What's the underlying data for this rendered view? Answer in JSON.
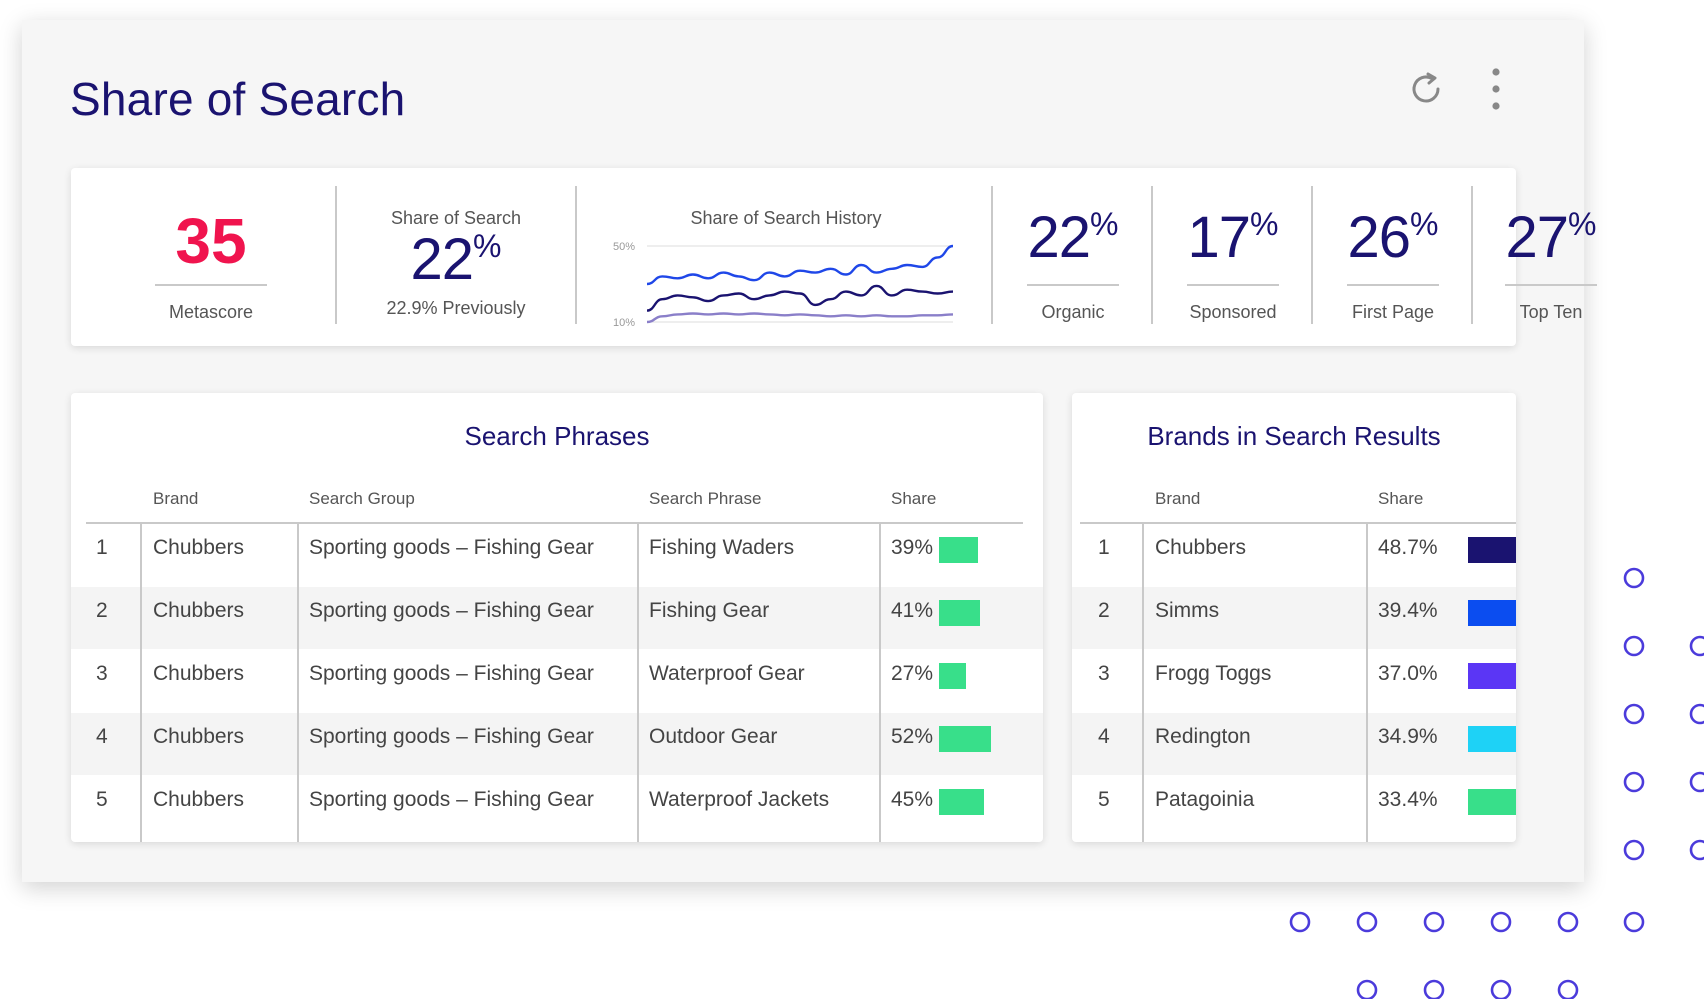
{
  "page": {
    "title": "Share of Search"
  },
  "toolbar": {
    "refresh": "refresh-icon",
    "menu": "more-vertical-icon"
  },
  "kpis": {
    "metascore": {
      "value": "35",
      "label": "Metascore"
    },
    "share_of_search": {
      "title": "Share of Search",
      "value": "22",
      "unit": "%",
      "previous": "22.9% Previously"
    },
    "history": {
      "title": "Share of Search History",
      "y_top_label": "50%",
      "y_bottom_label": "10%"
    },
    "organic": {
      "value": "22",
      "unit": "%",
      "label": "Organic"
    },
    "sponsored": {
      "value": "17",
      "unit": "%",
      "label": "Sponsored"
    },
    "first_page": {
      "value": "26",
      "unit": "%",
      "label": "First Page"
    },
    "top_ten": {
      "value": "27",
      "unit": "%",
      "label": "Top Ten"
    }
  },
  "chart_data": {
    "type": "line",
    "title": "Share of Search History",
    "ylim": [
      10,
      50
    ],
    "ytick_labels": [
      "50%",
      "10%"
    ],
    "grid": false,
    "series": [
      {
        "color": "#1f47e8",
        "values": [
          30,
          34,
          33,
          35,
          33,
          36,
          34,
          32,
          36,
          34,
          37,
          36,
          38,
          35,
          40,
          36,
          38,
          40,
          39,
          44,
          50
        ]
      },
      {
        "color": "#1a1370",
        "values": [
          16,
          22,
          24,
          23,
          21,
          24,
          25,
          22,
          24,
          26,
          25,
          19,
          22,
          26,
          24,
          29,
          24,
          27,
          26,
          25,
          26
        ]
      },
      {
        "color": "#8a7fc9",
        "values": [
          10,
          13,
          14,
          14.5,
          14,
          14.5,
          14,
          14.5,
          14,
          13.5,
          14,
          13.5,
          13,
          13.5,
          13,
          13.5,
          13,
          13,
          13.5,
          13.5,
          14
        ]
      }
    ]
  },
  "search_phrases": {
    "title": "Search Phrases",
    "headers": {
      "brand": "Brand",
      "group": "Search Group",
      "phrase": "Search Phrase",
      "share": "Share"
    },
    "bar_color": "#38df8a",
    "rows": [
      {
        "rank": "1",
        "brand": "Chubbers",
        "group": "Sporting goods – Fishing Gear",
        "phrase": "Fishing Waders",
        "share": "39%",
        "share_value": 39
      },
      {
        "rank": "2",
        "brand": "Chubbers",
        "group": "Sporting goods – Fishing Gear",
        "phrase": "Fishing Gear",
        "share": "41%",
        "share_value": 41
      },
      {
        "rank": "3",
        "brand": "Chubbers",
        "group": "Sporting goods – Fishing Gear",
        "phrase": "Waterproof Gear",
        "share": "27%",
        "share_value": 27
      },
      {
        "rank": "4",
        "brand": "Chubbers",
        "group": "Sporting goods – Fishing Gear",
        "phrase": "Outdoor Gear",
        "share": "52%",
        "share_value": 52
      },
      {
        "rank": "5",
        "brand": "Chubbers",
        "group": "Sporting goods – Fishing Gear",
        "phrase": "Waterproof Jackets",
        "share": "45%",
        "share_value": 45
      }
    ]
  },
  "brands": {
    "title": "Brands in Search Results",
    "headers": {
      "brand": "Brand",
      "share": "Share"
    },
    "rows": [
      {
        "rank": "1",
        "brand": "Chubbers",
        "share": "48.7%",
        "share_value": 48.7,
        "color": "#1a1370"
      },
      {
        "rank": "2",
        "brand": "Simms",
        "share": "39.4%",
        "share_value": 39.4,
        "color": "#0b4df0"
      },
      {
        "rank": "3",
        "brand": "Frogg Toggs",
        "share": "37.0%",
        "share_value": 37.0,
        "color": "#5b36f5"
      },
      {
        "rank": "4",
        "brand": "Redington",
        "share": "34.9%",
        "share_value": 34.9,
        "color": "#1ed2f6"
      },
      {
        "rank": "5",
        "brand": "Patagoinia",
        "share": "33.4%",
        "share_value": 33.4,
        "color": "#38df8a"
      }
    ]
  },
  "decor": {
    "dot_color": "#4b3bdb"
  }
}
